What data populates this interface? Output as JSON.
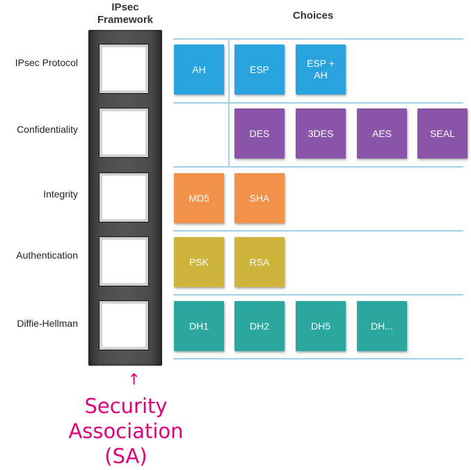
{
  "headers": {
    "framework": "IPsec\nFramework",
    "choices": "Choices"
  },
  "rows": [
    {
      "label": "IPsec Protocol"
    },
    {
      "label": "Confidentiality"
    },
    {
      "label": "Integrity"
    },
    {
      "label": "Authentication"
    },
    {
      "label": "Diffie-Hellman"
    }
  ],
  "tiles": {
    "protocol": [
      "AH",
      "ESP",
      "ESP +\nAH"
    ],
    "confidentiality": [
      "DES",
      "3DES",
      "AES",
      "SEAL"
    ],
    "integrity": [
      "MD5",
      "SHA"
    ],
    "authentication": [
      "PSK",
      "RSA"
    ],
    "diffie_hellman": [
      "DH1",
      "DH2",
      "DH5",
      "DH..."
    ]
  },
  "annotation": {
    "arrow_glyph": "↑",
    "text": "Security\nAssociation\n(SA)"
  },
  "colors": {
    "protocol": "#29a3dd",
    "confidentiality": "#8a55a8",
    "integrity": "#f2914a",
    "authentication": "#cdb43a",
    "diffie_hellman": "#2aa89f",
    "annotation": "#e0007a"
  }
}
